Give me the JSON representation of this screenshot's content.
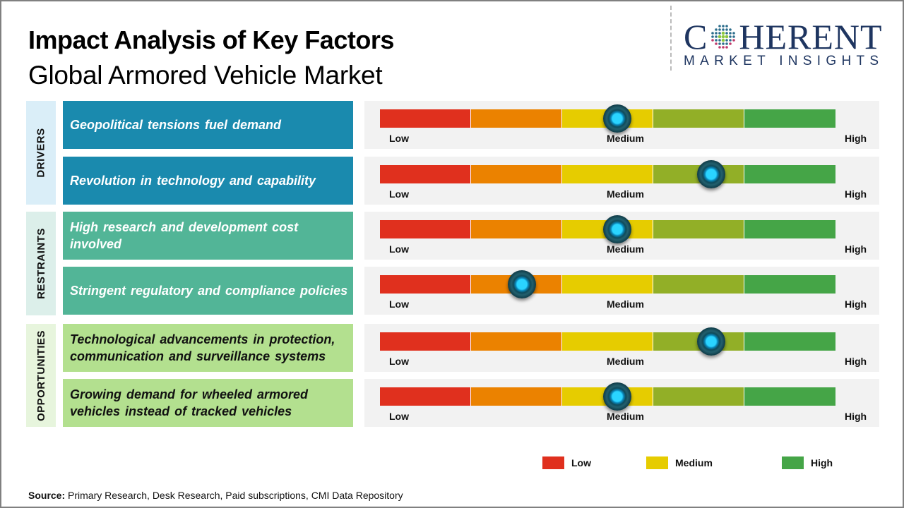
{
  "header": {
    "title": "Impact Analysis of Key Factors",
    "subtitle": "Global Armored Vehicle Market"
  },
  "logo": {
    "top_left": "C",
    "top_right": "HERENT",
    "bottom": "MARKET INSIGHTS",
    "icon": "globe-dots-icon",
    "color": "#1e3560"
  },
  "colors": {
    "drivers_label_bg": "#daeef8",
    "drivers_row_bg": "#1a8aae",
    "restraints_label_bg": "#dcefea",
    "restraints_row_bg": "#52b597",
    "opportunities_label_bg": "#e7f5dd",
    "opportunities_row_bg": "#b3e08f",
    "scale_segments": [
      "#e0301e",
      "#eb8200",
      "#e6cc00",
      "#92af27",
      "#45a547"
    ]
  },
  "scale_labels": {
    "low": "Low",
    "medium": "Medium",
    "high": "High"
  },
  "chart_data": {
    "type": "table",
    "title": "Impact Analysis of Key Factors - Global Armored Vehicle Market",
    "scale": {
      "min_label": "Low",
      "mid_label": "Medium",
      "max_label": "High",
      "range": [
        0,
        1
      ]
    },
    "categories": [
      {
        "name": "DRIVERS",
        "factors": [
          {
            "text": "Geopolitical  tensions fuel demand",
            "impact": 0.52,
            "impact_level": "Medium"
          },
          {
            "text": "Revolution  in technology  and capability",
            "impact": 0.725,
            "impact_level": "Medium-High"
          }
        ]
      },
      {
        "name": "RESTRAINTS",
        "factors": [
          {
            "text": "High research  and development  cost involved",
            "impact": 0.52,
            "impact_level": "Medium"
          },
          {
            "text": "Stringent  regulatory  and compliance policies",
            "impact": 0.31,
            "impact_level": "Low-Medium"
          }
        ]
      },
      {
        "name": "OPPORTUNITIES",
        "factors": [
          {
            "text": "Technological  advancements  in protection, communication  and surveillance  systems",
            "impact": 0.725,
            "impact_level": "Medium-High"
          },
          {
            "text": "Growing  demand  for wheeled armored vehicles instead of tracked  vehicles",
            "impact": 0.52,
            "impact_level": "Medium"
          }
        ]
      }
    ],
    "legend": [
      {
        "label": "Low",
        "color": "#e0301e"
      },
      {
        "label": "Medium",
        "color": "#e6cc00"
      },
      {
        "label": "High",
        "color": "#45a547"
      }
    ],
    "legend_position": "bottom-right"
  },
  "footer": {
    "source_label": "Source:",
    "source_text": " Primary Research, Desk Research, Paid subscriptions, CMI Data Repository"
  }
}
